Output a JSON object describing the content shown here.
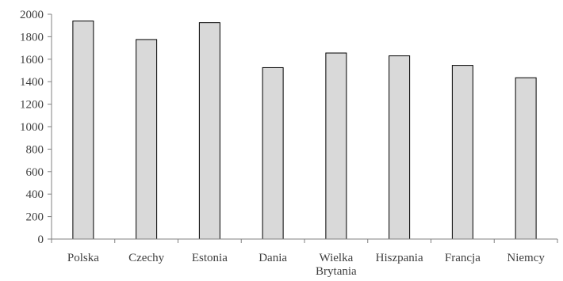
{
  "chart_data": {
    "type": "bar",
    "title": "",
    "xlabel": "",
    "ylabel": "",
    "categories": [
      [
        "Polska"
      ],
      [
        "Czechy"
      ],
      [
        "Estonia"
      ],
      [
        "Dania"
      ],
      [
        "Wielka",
        "Brytania"
      ],
      [
        "Hiszpania"
      ],
      [
        "Francja"
      ],
      [
        "Niemcy"
      ]
    ],
    "values": [
      1940,
      1775,
      1925,
      1525,
      1655,
      1630,
      1545,
      1435
    ],
    "ylim": [
      0,
      2000
    ],
    "yticks": [
      "0",
      "200",
      "400",
      "600",
      "800",
      "1000",
      "1200",
      "1400",
      "1600",
      "1800",
      "2000"
    ],
    "grid": false,
    "legend": "none",
    "bar_fill": "#d9d9d9",
    "bar_stroke": "#000000",
    "axis_color": "#808080"
  }
}
